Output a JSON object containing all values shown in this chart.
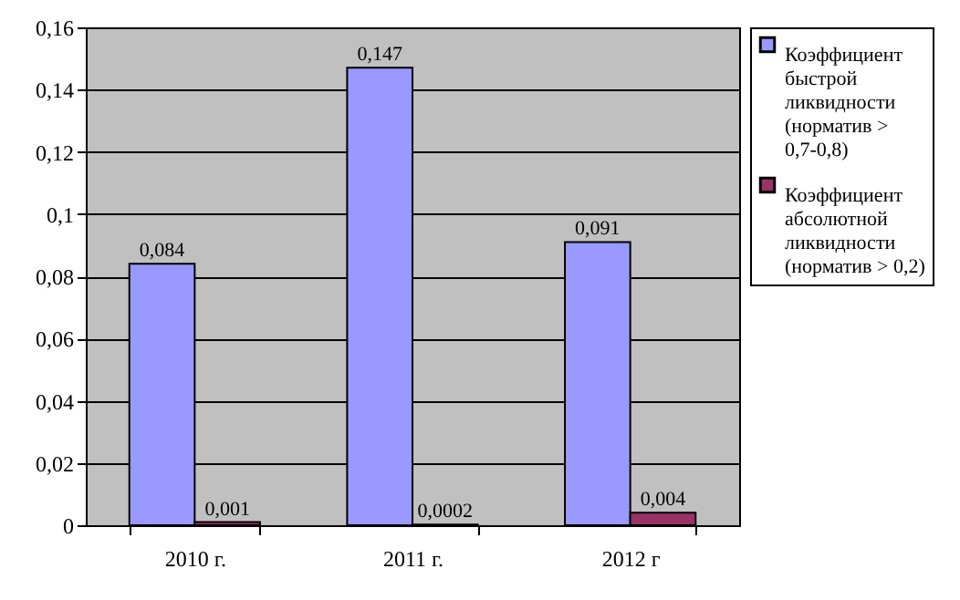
{
  "chart_data": {
    "type": "bar",
    "categories": [
      "2010 г.",
      "2011 г.",
      "2012 г"
    ],
    "series": [
      {
        "name": "Коэффициент быстрой ликвидности (норматив > 0,7-0,8)",
        "color": "#9999ff",
        "values": [
          0.084,
          0.147,
          0.091
        ],
        "value_labels": [
          "0,084",
          "0,147",
          "0,091"
        ]
      },
      {
        "name": "Коэффициент абсолютной ликвидности (норматив > 0,2)",
        "color": "#993366",
        "values": [
          0.001,
          0.0002,
          0.004
        ],
        "value_labels": [
          "0,001",
          "0,0002",
          "0,004"
        ]
      }
    ],
    "ylim": [
      0,
      0.16
    ],
    "yticks": [
      0,
      {
        "value": 0.02,
        "label": "0,02"
      },
      {
        "value": 0.04,
        "label": "0,04"
      },
      {
        "value": 0.06,
        "label": "0,06"
      },
      {
        "value": 0.08,
        "label": "0,08"
      },
      {
        "value": 0.1,
        "label": "0,1"
      },
      {
        "value": 0.12,
        "label": "0,12"
      },
      {
        "value": 0.14,
        "label": "0,14"
      },
      {
        "value": 0.16,
        "label": "0,16"
      }
    ],
    "grid": "y",
    "legend": "right"
  }
}
